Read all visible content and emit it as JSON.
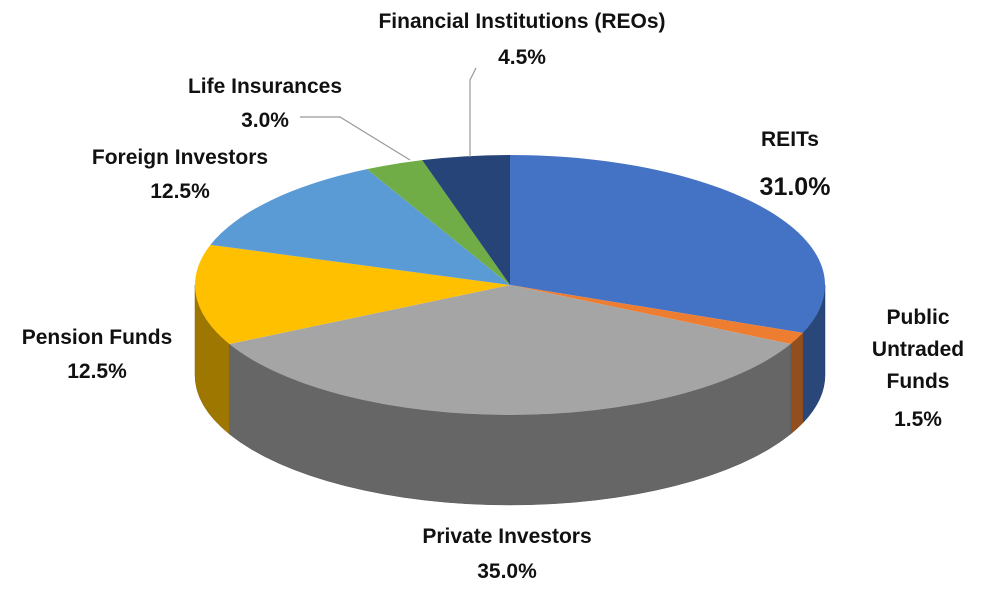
{
  "chart_data": {
    "type": "pie",
    "categories": [
      "REITs",
      "Public Untraded Funds",
      "Private Investors",
      "Pension Funds",
      "Foreign Investors",
      "Life Insurances",
      "Financial Institutions (REOs)"
    ],
    "values": [
      31.0,
      1.5,
      35.0,
      12.5,
      12.5,
      3.0,
      4.5
    ],
    "value_labels": [
      "31.0%",
      "1.5%",
      "35.0%",
      "12.5%",
      "12.5%",
      "3.0%",
      "4.5%"
    ],
    "colors": [
      "#4472c4",
      "#ed7d31",
      "#a5a5a5",
      "#ffc000",
      "#5b9bd5",
      "#70ad47",
      "#264478"
    ]
  }
}
